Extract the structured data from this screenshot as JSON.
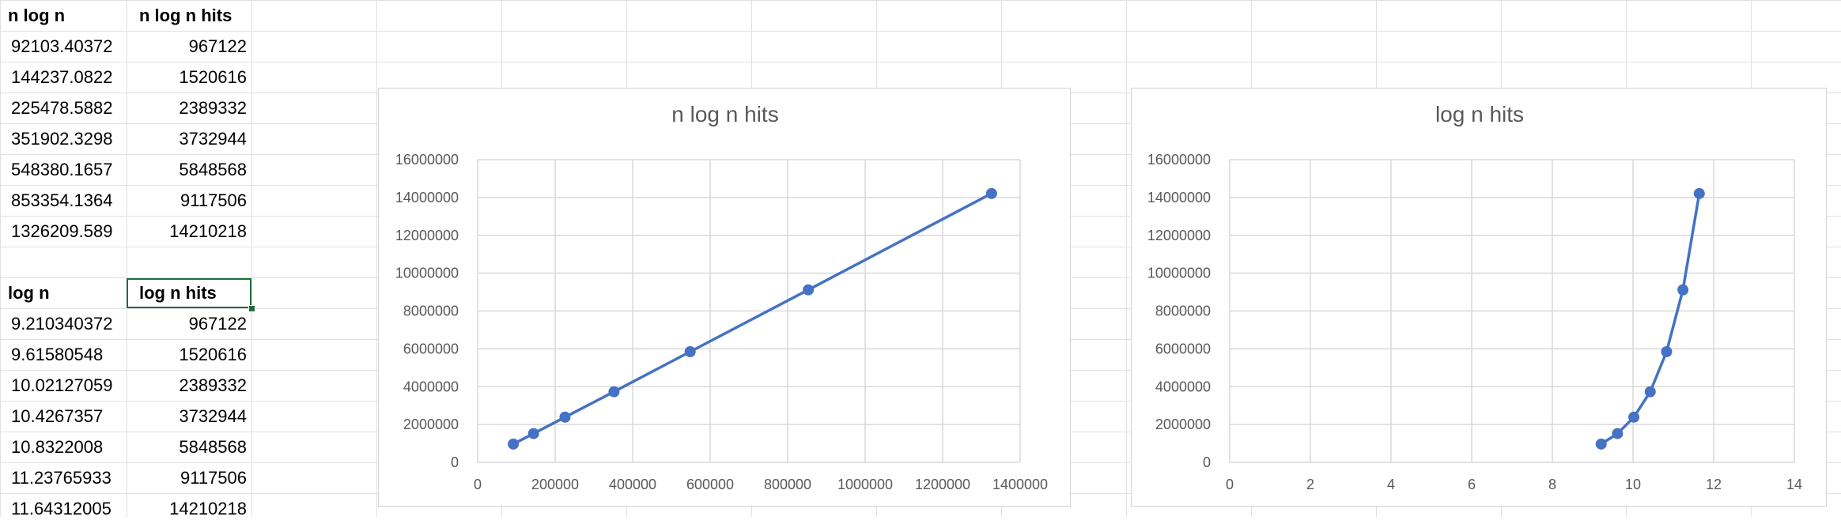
{
  "sheet": {
    "table1": {
      "headers": [
        "n log n",
        "n log n hits"
      ],
      "rows": [
        [
          "92103.40372",
          "967122"
        ],
        [
          "144237.0822",
          "1520616"
        ],
        [
          "225478.5882",
          "2389332"
        ],
        [
          "351902.3298",
          "3732944"
        ],
        [
          "548380.1657",
          "5848568"
        ],
        [
          "853354.1364",
          "9117506"
        ],
        [
          "1326209.589",
          "14210218"
        ]
      ]
    },
    "table2": {
      "headers": [
        "log n",
        "log n hits"
      ],
      "rows": [
        [
          "9.210340372",
          "967122"
        ],
        [
          "9.61580548",
          "1520616"
        ],
        [
          "10.02127059",
          "2389332"
        ],
        [
          "10.4267357",
          "3732944"
        ],
        [
          "10.8322008",
          "5848568"
        ],
        [
          "11.23765933",
          "9117506"
        ],
        [
          "11.64312005",
          "14210218"
        ]
      ]
    },
    "selected_cell": "log n hits"
  },
  "chart_data": [
    {
      "type": "scatter",
      "title": "n log n hits",
      "xlabel": "",
      "ylabel": "",
      "xlim": [
        0,
        1400000
      ],
      "ylim": [
        0,
        16000000
      ],
      "xticks": [
        "0",
        "200000",
        "400000",
        "600000",
        "800000",
        "1000000",
        "1200000",
        "1400000"
      ],
      "yticks": [
        "0",
        "2000000",
        "4000000",
        "6000000",
        "8000000",
        "10000000",
        "12000000",
        "14000000",
        "16000000"
      ],
      "x": [
        92103.40372,
        144237.0822,
        225478.5882,
        351902.3298,
        548380.1657,
        853354.1364,
        1326209.589
      ],
      "y": [
        967122,
        1520616,
        2389332,
        3732944,
        5848568,
        9117506,
        14210218
      ],
      "grid": true,
      "color": "#4472c4"
    },
    {
      "type": "scatter",
      "title": "log n hits",
      "xlabel": "",
      "ylabel": "",
      "xlim": [
        0,
        14
      ],
      "ylim": [
        0,
        16000000
      ],
      "xticks": [
        "0",
        "2",
        "4",
        "6",
        "8",
        "10",
        "12",
        "14"
      ],
      "yticks": [
        "0",
        "2000000",
        "4000000",
        "6000000",
        "8000000",
        "10000000",
        "12000000",
        "14000000",
        "16000000"
      ],
      "x": [
        9.210340372,
        9.61580548,
        10.02127059,
        10.4267357,
        10.8322008,
        11.23765933,
        11.64312005
      ],
      "y": [
        967122,
        1520616,
        2389332,
        3732944,
        5848568,
        9117506,
        14210218
      ],
      "grid": true,
      "color": "#4472c4"
    }
  ]
}
